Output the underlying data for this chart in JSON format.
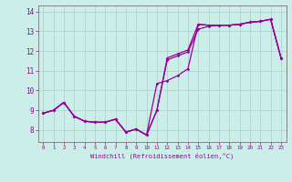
{
  "xlabel": "Windchill (Refroidissement éolien,°C)",
  "background_color": "#cceee8",
  "line_color": "#990099",
  "grid_color": "#aacccc",
  "xlim": [
    -0.5,
    23.5
  ],
  "ylim": [
    7.4,
    14.3
  ],
  "yticks": [
    8,
    9,
    10,
    11,
    12,
    13,
    14
  ],
  "xticks": [
    0,
    1,
    2,
    3,
    4,
    5,
    6,
    7,
    8,
    9,
    10,
    11,
    12,
    13,
    14,
    15,
    16,
    17,
    18,
    19,
    20,
    21,
    22,
    23
  ],
  "x": [
    0,
    1,
    2,
    3,
    4,
    5,
    6,
    7,
    8,
    9,
    10,
    11,
    12,
    13,
    14,
    15,
    16,
    17,
    18,
    19,
    20,
    21,
    22,
    23
  ],
  "y_line1": [
    8.85,
    9.0,
    9.4,
    8.7,
    8.45,
    8.4,
    8.4,
    8.55,
    7.9,
    8.05,
    7.75,
    9.0,
    11.65,
    11.85,
    12.05,
    13.35,
    13.3,
    13.3,
    13.3,
    13.35,
    13.45,
    13.5,
    13.6,
    11.65
  ],
  "y_line2": [
    8.85,
    9.0,
    9.4,
    8.7,
    8.45,
    8.4,
    8.4,
    8.55,
    7.9,
    8.05,
    7.75,
    9.0,
    11.55,
    11.75,
    11.95,
    13.1,
    13.25,
    13.3,
    13.3,
    13.35,
    13.45,
    13.5,
    13.6,
    11.65
  ],
  "y_line3": [
    8.85,
    9.0,
    9.4,
    8.7,
    8.45,
    8.4,
    8.4,
    8.55,
    7.9,
    8.05,
    7.75,
    10.35,
    10.5,
    10.75,
    11.1,
    13.35,
    13.3,
    13.3,
    13.3,
    13.35,
    13.45,
    13.5,
    13.6,
    11.65
  ]
}
